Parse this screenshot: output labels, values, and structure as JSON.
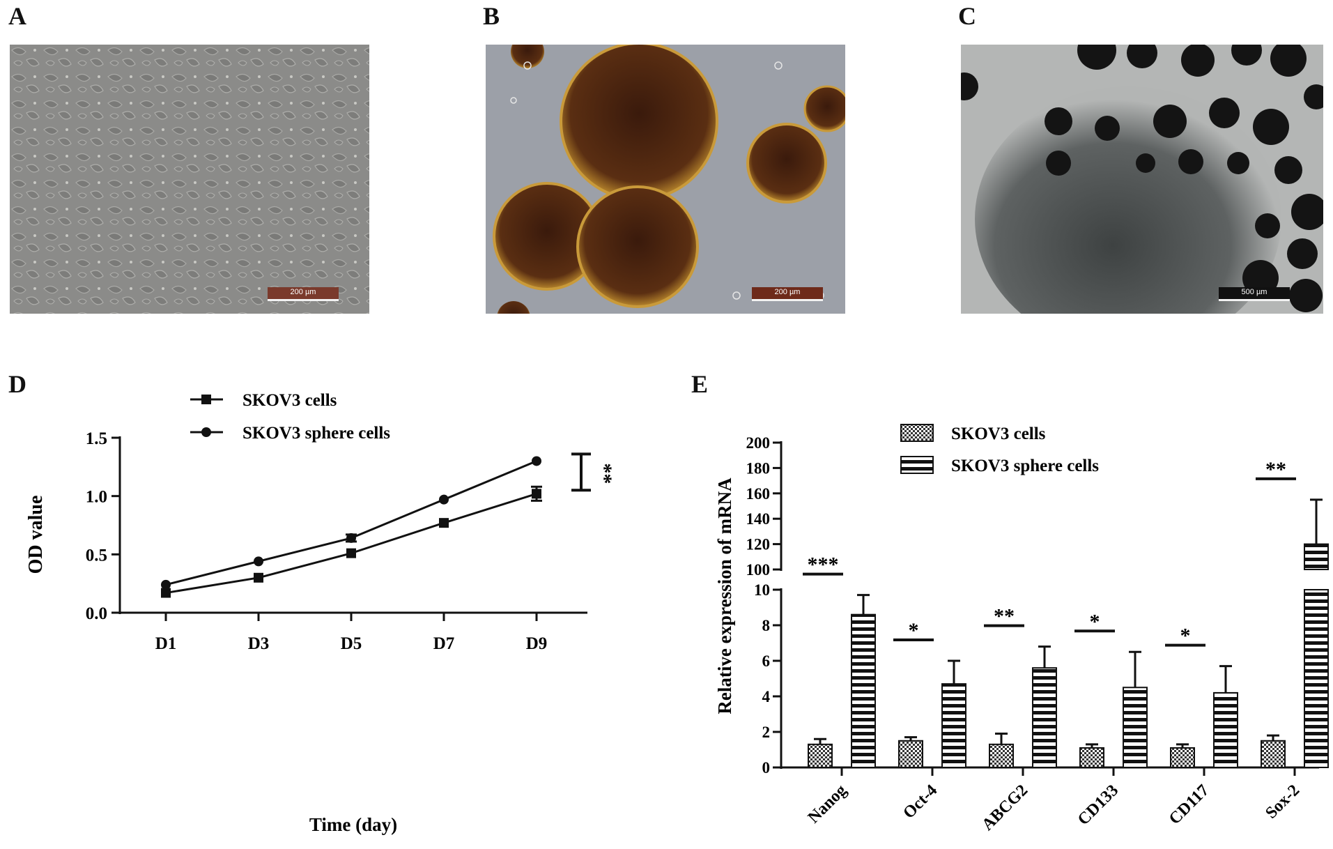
{
  "panels": {
    "A": {
      "letter": "A",
      "scale": "200 µm"
    },
    "B": {
      "letter": "B",
      "scale": "200 µm"
    },
    "C": {
      "letter": "C",
      "scale": "500 µm"
    },
    "D": {
      "letter": "D"
    },
    "E": {
      "letter": "E"
    }
  },
  "colors": {
    "line": "#111111",
    "bg": "#ffffff",
    "scale_A": "#7a3a2c",
    "scale_B": "#6e2a1a",
    "scale_C": "#111111"
  },
  "chart_data": [
    {
      "type": "line",
      "xlabel": "Time (day)",
      "ylabel": "OD value",
      "categories": [
        "D1",
        "D3",
        "D5",
        "D7",
        "D9"
      ],
      "yticks": [
        "0.0",
        "0.5",
        "1.0",
        "1.5"
      ],
      "ylim": [
        0,
        1.5
      ],
      "series": [
        {
          "name": "SKOV3 cells",
          "marker": "square",
          "values": [
            0.17,
            0.3,
            0.51,
            0.77,
            1.02
          ],
          "errors": [
            0.01,
            0.01,
            0.01,
            0.01,
            0.06
          ]
        },
        {
          "name": "SKOV3 sphere cells",
          "marker": "circle",
          "values": [
            0.24,
            0.44,
            0.64,
            0.97,
            1.3
          ],
          "errors": [
            0.01,
            0.01,
            0.03,
            0.01,
            0.01
          ]
        }
      ],
      "significance": "**",
      "significance_range": [
        1.05,
        1.36
      ],
      "legend": "top-left"
    },
    {
      "type": "bar",
      "ylabel": "Relative expression of mRNA",
      "categories": [
        "Nanog",
        "Oct-4",
        "ABCG2",
        "CD133",
        "CD117",
        "Sox-2"
      ],
      "y_lower_ticks": [
        "0",
        "2",
        "4",
        "6",
        "8",
        "10"
      ],
      "y_upper_ticks": [
        "100",
        "120",
        "140",
        "160",
        "180",
        "200"
      ],
      "ylim_lower": [
        0,
        10
      ],
      "ylim_upper": [
        100,
        200
      ],
      "series": [
        {
          "name": "SKOV3 cells",
          "pattern": "checker",
          "values": [
            1.3,
            1.5,
            1.3,
            1.1,
            1.1,
            1.5
          ],
          "errors": [
            0.3,
            0.2,
            0.6,
            0.2,
            0.2,
            0.3
          ]
        },
        {
          "name": "SKOV3 sphere cells",
          "pattern": "horizontal-stripes",
          "values": [
            8.6,
            4.7,
            5.6,
            4.5,
            4.2,
            120
          ],
          "errors": [
            1.1,
            1.3,
            1.2,
            2.0,
            1.5,
            35
          ]
        }
      ],
      "significance": [
        "***",
        "*",
        "**",
        "*",
        "*",
        "**"
      ],
      "legend": "top-center"
    }
  ]
}
